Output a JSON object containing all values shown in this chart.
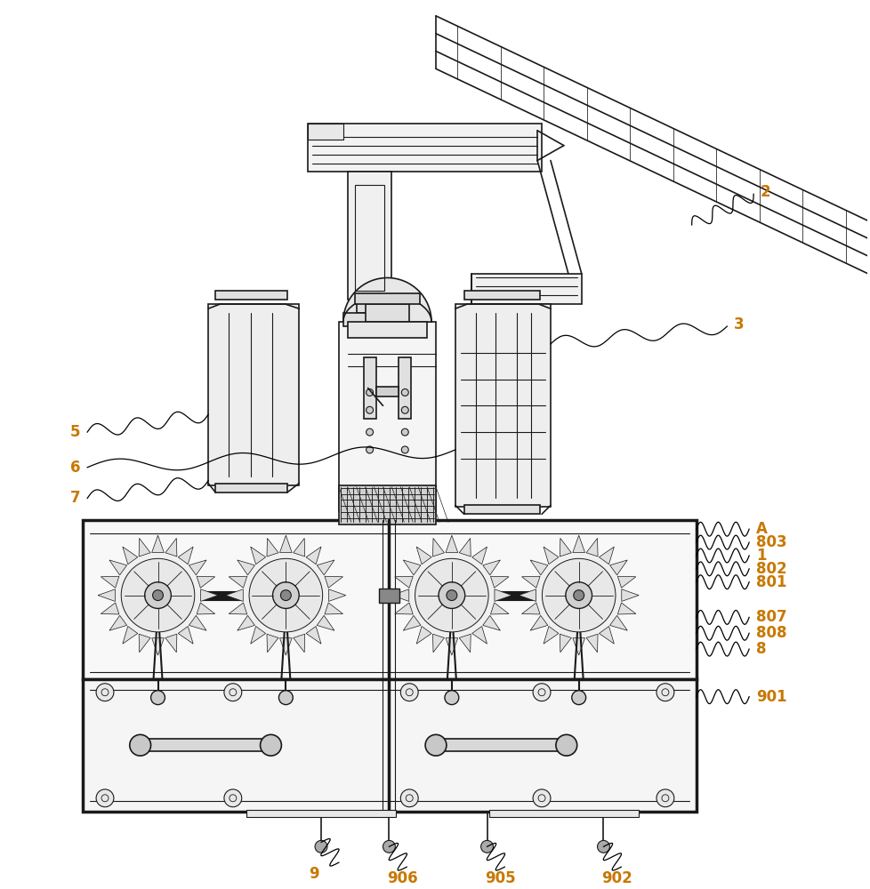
{
  "bg_color": "#ffffff",
  "line_color": "#1a1a1a",
  "label_color": "#c87800",
  "label_font_size": 12,
  "fig_width": 9.79,
  "fig_height": 10.0
}
